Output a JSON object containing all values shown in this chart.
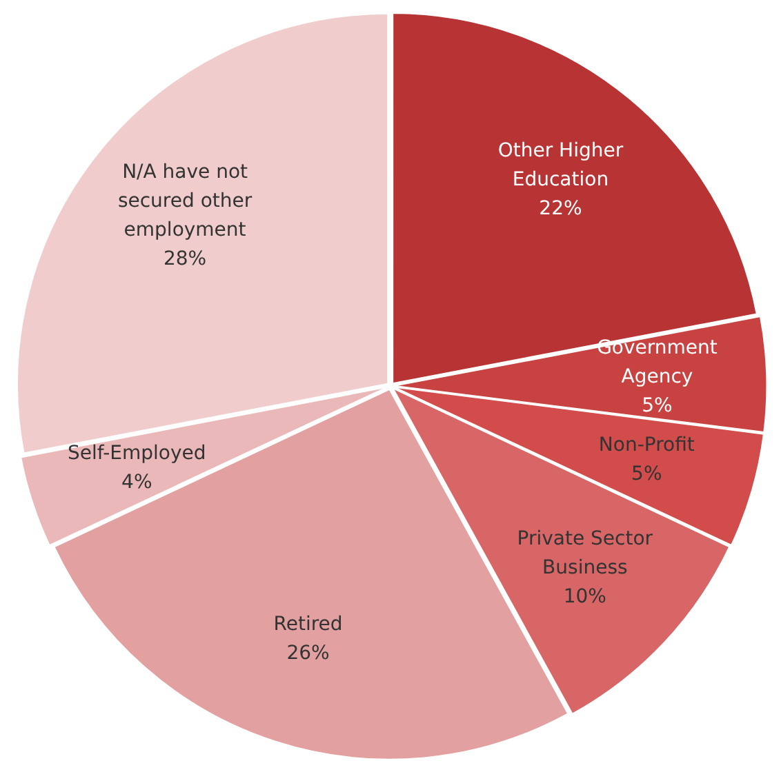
{
  "chart_data": {
    "type": "pie",
    "categories": [
      "Other Higher Education",
      "Government Agency",
      "Non-Profit",
      "Private Sector Business",
      "Retired",
      "Self-Employed",
      "N/A have not secured other employment"
    ],
    "values": [
      22,
      5,
      5,
      10,
      26,
      4,
      28
    ],
    "colors": [
      "#b83434",
      "#c94242",
      "#d24c4c",
      "#d96666",
      "#e3a0a0",
      "#eab8b8",
      "#f1cccc"
    ],
    "value_labels": [
      "22%",
      "5%",
      "5%",
      "10%",
      "26%",
      "4%",
      "28%"
    ],
    "legend": false
  }
}
